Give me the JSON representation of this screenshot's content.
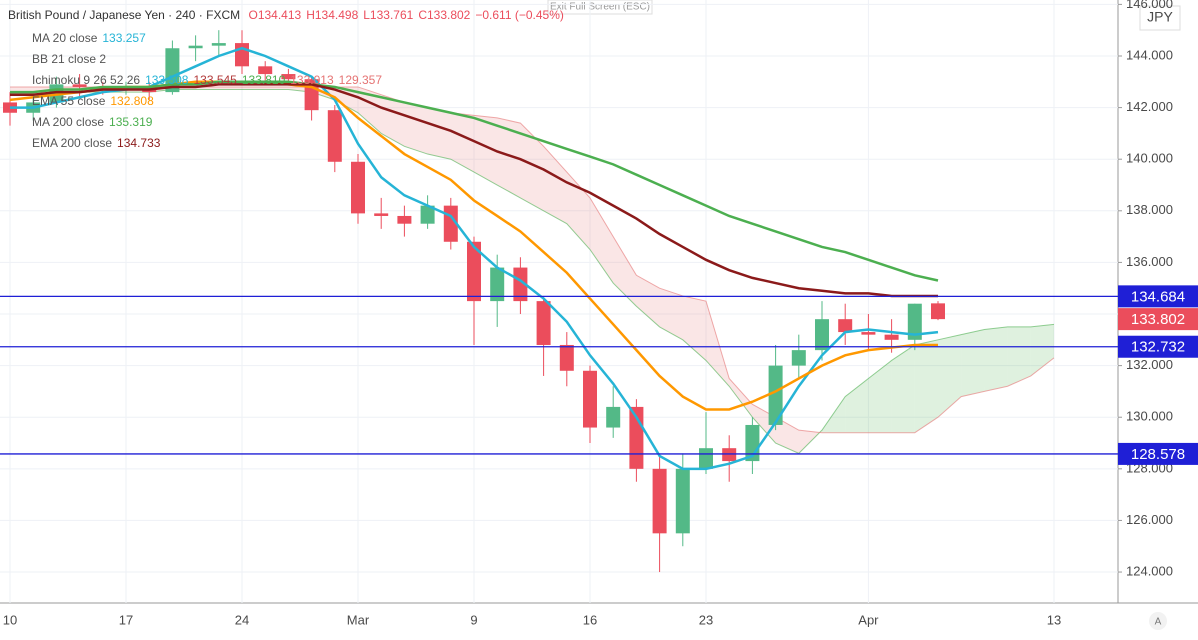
{
  "chart_data": {
    "type": "candlestick",
    "symbol": "British Pound / Japanese Yen · 240 · FXCM",
    "ohlc_readout": [
      "O134.413",
      "H134.498",
      "L133.761",
      "C133.802",
      "−0.611 (−0.45%)"
    ],
    "currency": "JPY",
    "exit_hint": "Exit Full Screen (ESC)",
    "auto_button": "A",
    "up_color": "#53b987",
    "down_color": "#eb4d5c",
    "categories": [
      "10",
      null,
      null,
      null,
      null,
      "17",
      null,
      null,
      null,
      null,
      "24",
      null,
      null,
      null,
      null,
      "Mar",
      null,
      null,
      null,
      null,
      "9",
      null,
      null,
      null,
      null,
      "16",
      null,
      null,
      null,
      null,
      "23",
      null,
      null,
      null,
      null,
      null,
      null,
      "Apr",
      null,
      null,
      null,
      null,
      null,
      null,
      null,
      "13",
      null,
      null
    ],
    "open": [
      142.2,
      141.8,
      142.2,
      142.9,
      142.8,
      142.7,
      142.8,
      142.6,
      144.3,
      144.4,
      144.5,
      143.6,
      143.3,
      143.1,
      141.9,
      139.9,
      137.9,
      137.8,
      137.5,
      138.2,
      136.8,
      134.5,
      135.8,
      134.5,
      132.8,
      131.8,
      129.6,
      130.4,
      128.0,
      125.5,
      128.0,
      128.8,
      128.3,
      129.7,
      132.0,
      132.6,
      133.8,
      133.3,
      133.2,
      133.0,
      134.413,
      null,
      null,
      null,
      null,
      null,
      null,
      null
    ],
    "high": [
      142.6,
      142.4,
      143.2,
      143.3,
      143.0,
      143.0,
      143.0,
      144.6,
      144.8,
      145.0,
      145.0,
      143.8,
      143.5,
      143.2,
      142.1,
      140.2,
      138.5,
      138.2,
      138.6,
      138.5,
      137.0,
      136.3,
      136.2,
      134.7,
      133.3,
      132.0,
      131.2,
      130.7,
      128.5,
      128.6,
      130.2,
      129.3,
      130.0,
      132.8,
      133.2,
      134.5,
      134.4,
      134.0,
      133.8,
      134.4,
      134.498,
      null,
      null,
      null,
      null,
      null,
      null,
      null
    ],
    "low": [
      141.3,
      141.5,
      142.0,
      142.4,
      142.5,
      142.5,
      142.3,
      142.5,
      143.8,
      144.0,
      143.3,
      142.9,
      142.9,
      141.5,
      139.5,
      137.5,
      137.3,
      137.0,
      137.3,
      136.5,
      132.8,
      133.5,
      134.0,
      131.6,
      131.2,
      129.0,
      129.2,
      127.5,
      124.0,
      125.0,
      127.8,
      127.5,
      127.8,
      129.5,
      131.5,
      132.2,
      132.8,
      132.6,
      132.5,
      132.6,
      133.761,
      null,
      null,
      null,
      null,
      null,
      null,
      null
    ],
    "close": [
      141.8,
      142.2,
      142.9,
      142.8,
      142.7,
      142.8,
      142.6,
      144.3,
      144.4,
      144.5,
      143.6,
      143.3,
      143.1,
      141.9,
      139.9,
      137.9,
      137.8,
      137.5,
      138.2,
      136.8,
      134.5,
      135.8,
      134.5,
      132.8,
      131.8,
      129.6,
      130.4,
      128.0,
      125.5,
      128.0,
      128.8,
      128.3,
      129.7,
      132.0,
      132.6,
      133.8,
      133.3,
      133.2,
      133.0,
      134.4,
      133.802,
      null,
      null,
      null,
      null,
      null,
      null,
      null
    ],
    "series": [
      {
        "name": "MA 20 close",
        "readout": "133.257",
        "color": "#26b4d6",
        "values": [
          142.0,
          142.0,
          142.2,
          142.4,
          142.6,
          142.7,
          142.8,
          143.2,
          143.6,
          144.0,
          144.3,
          144.0,
          143.6,
          143.2,
          142.3,
          140.6,
          139.3,
          138.6,
          138.2,
          137.8,
          136.6,
          135.8,
          135.3,
          134.6,
          133.7,
          132.4,
          131.3,
          130.0,
          128.5,
          128.0,
          128.0,
          128.2,
          128.5,
          129.8,
          131.2,
          132.4,
          133.3,
          133.4,
          133.3,
          133.2,
          133.3,
          null,
          null,
          null,
          null,
          null,
          null,
          null
        ]
      },
      {
        "name": "EMA 55 close",
        "readout": "132.808",
        "color": "#ff9800",
        "values": [
          142.3,
          142.4,
          142.5,
          142.6,
          142.7,
          142.8,
          142.8,
          142.9,
          143.0,
          143.0,
          143.0,
          143.0,
          142.9,
          142.8,
          142.4,
          141.6,
          140.9,
          140.2,
          139.7,
          139.2,
          138.4,
          137.8,
          137.2,
          136.4,
          135.6,
          134.6,
          133.6,
          132.6,
          131.6,
          130.8,
          130.3,
          130.3,
          130.6,
          131.0,
          131.5,
          132.0,
          132.4,
          132.6,
          132.7,
          132.8,
          132.8,
          null,
          null,
          null,
          null,
          null,
          null,
          null
        ]
      },
      {
        "name": "MA 200 close",
        "readout": "135.319",
        "color": "#4caf50",
        "values": [
          142.6,
          142.6,
          142.7,
          142.7,
          142.8,
          142.8,
          142.8,
          142.9,
          142.9,
          143.0,
          143.0,
          143.0,
          143.0,
          142.9,
          142.8,
          142.6,
          142.4,
          142.2,
          142.0,
          141.8,
          141.6,
          141.3,
          141.0,
          140.7,
          140.4,
          140.1,
          139.8,
          139.4,
          139.0,
          138.6,
          138.2,
          137.8,
          137.5,
          137.2,
          136.9,
          136.6,
          136.4,
          136.1,
          135.8,
          135.5,
          135.3,
          null,
          null,
          null,
          null,
          null,
          null,
          null
        ]
      },
      {
        "name": "EMA 200 close",
        "readout": "134.733",
        "color": "#8b1a1a",
        "values": [
          142.5,
          142.5,
          142.6,
          142.6,
          142.7,
          142.7,
          142.7,
          142.8,
          142.8,
          142.9,
          142.9,
          142.9,
          142.9,
          142.9,
          142.7,
          142.4,
          142.0,
          141.7,
          141.4,
          141.1,
          140.7,
          140.3,
          140.0,
          139.6,
          139.1,
          138.7,
          138.2,
          137.7,
          137.1,
          136.6,
          136.1,
          135.7,
          135.4,
          135.2,
          135.0,
          134.9,
          134.8,
          134.8,
          134.7,
          134.7,
          134.7,
          null,
          null,
          null,
          null,
          null,
          null,
          null
        ]
      }
    ],
    "bollinger": {
      "name": "BB 21 close 2"
    },
    "ichimoku": {
      "name": "Ichimoku 9 26 52 26",
      "readouts": [
        "133.508",
        "133.545",
        "133.810",
        "133.013",
        "129.357"
      ],
      "readout_colors": [
        "#26b4d6",
        "#b23a3a",
        "#4caf50",
        "#e57373",
        "#e57373"
      ],
      "up_color": "#4caf50",
      "down_color": "#e57373",
      "span_a": [
        142.5,
        142.5,
        142.5,
        142.6,
        142.6,
        142.6,
        142.6,
        142.7,
        142.7,
        142.7,
        142.7,
        142.7,
        142.7,
        142.6,
        142.3,
        141.8,
        141.0,
        140.5,
        140.2,
        140.0,
        139.5,
        139.0,
        138.5,
        138.0,
        137.5,
        136.5,
        135.2,
        134.3,
        133.5,
        133.0,
        132.2,
        131.2,
        130.0,
        129.0,
        128.6,
        129.5,
        130.8,
        131.5,
        132.2,
        132.8,
        133.0,
        133.2,
        133.4,
        133.5,
        133.5,
        133.6,
        null,
        null
      ],
      "span_b": [
        142.8,
        142.8,
        142.8,
        142.8,
        142.8,
        142.8,
        142.8,
        142.8,
        142.8,
        142.8,
        142.8,
        142.8,
        142.8,
        142.8,
        142.8,
        142.8,
        142.5,
        142.2,
        142.0,
        141.8,
        141.7,
        141.6,
        141.4,
        140.5,
        139.5,
        138.5,
        137.0,
        135.5,
        135.0,
        134.7,
        134.5,
        131.5,
        130.5,
        130.0,
        129.5,
        129.4,
        129.4,
        129.4,
        129.4,
        129.4,
        130.0,
        130.8,
        131.0,
        131.2,
        131.6,
        132.3,
        null,
        null
      ]
    },
    "hlines": [
      134.684,
      132.732,
      128.578
    ],
    "hline_color": "#1f1fd6",
    "last_price": 133.802,
    "ylim": [
      122.8,
      146.17
    ],
    "yticks": [
      {
        "value": 124,
        "label": "124.000"
      },
      {
        "value": 126,
        "label": "126.000"
      },
      {
        "value": 128,
        "label": "128.000"
      },
      {
        "value": 130,
        "label": "130.000"
      },
      {
        "value": 132,
        "label": "132.000"
      },
      {
        "value": 134,
        "label": "134.000"
      },
      {
        "value": 136,
        "label": "136.000"
      },
      {
        "value": 138,
        "label": "138.000"
      },
      {
        "value": 140,
        "label": "140.000"
      },
      {
        "value": 142,
        "label": "142.000"
      },
      {
        "value": 144,
        "label": "144.000"
      },
      {
        "value": 146,
        "label": "146.000"
      }
    ],
    "grid": true
  }
}
